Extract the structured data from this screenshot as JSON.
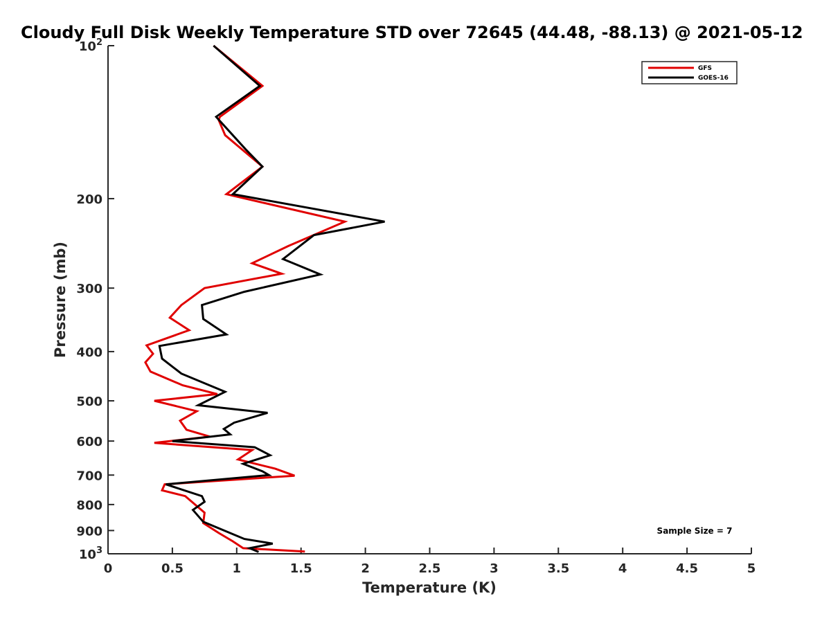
{
  "chart_data": {
    "type": "line",
    "title": "Cloudy Full Disk Weekly Temperature STD over 72645 (44.48, -88.13) @ 2021-05-12",
    "xlabel": "Temperature (K)",
    "ylabel": "Pressure (mb)",
    "xlim": [
      0,
      5
    ],
    "ylim": [
      100,
      1000
    ],
    "y_scale": "log",
    "y_reversed": true,
    "grid": false,
    "legend_position": "top-right",
    "x_ticks": [
      "0",
      "0.5",
      "1",
      "1.5",
      "2",
      "2.5",
      "3",
      "3.5",
      "4",
      "4.5",
      "5"
    ],
    "x_tick_values": [
      0,
      0.5,
      1,
      1.5,
      2,
      2.5,
      3,
      3.5,
      4,
      4.5,
      5
    ],
    "y_tick_values": [
      100,
      200,
      300,
      400,
      500,
      600,
      700,
      800,
      900,
      1000
    ],
    "y_tick_labels": [
      {
        "base": "10",
        "exp": "2"
      },
      {
        "base": "200",
        "exp": ""
      },
      {
        "base": "300",
        "exp": ""
      },
      {
        "base": "400",
        "exp": ""
      },
      {
        "base": "500",
        "exp": ""
      },
      {
        "base": "600",
        "exp": ""
      },
      {
        "base": "700",
        "exp": ""
      },
      {
        "base": "800",
        "exp": ""
      },
      {
        "base": "900",
        "exp": ""
      },
      {
        "base": "10",
        "exp": "3"
      }
    ],
    "annotation": "Sample Size = 7",
    "series": [
      {
        "name": "GFS",
        "color": "#e00000",
        "points": [
          [
            0.82,
            100
          ],
          [
            1.2,
            120
          ],
          [
            0.87,
            138
          ],
          [
            0.86,
            140
          ],
          [
            0.91,
            150
          ],
          [
            1.2,
            173
          ],
          [
            0.92,
            196
          ],
          [
            1.84,
            222
          ],
          [
            1.4,
            248
          ],
          [
            1.12,
            268
          ],
          [
            1.35,
            281
          ],
          [
            0.75,
            300
          ],
          [
            0.57,
            324
          ],
          [
            0.48,
            343
          ],
          [
            0.63,
            363
          ],
          [
            0.3,
            389
          ],
          [
            0.35,
            404
          ],
          [
            0.29,
            420
          ],
          [
            0.33,
            438
          ],
          [
            0.58,
            466
          ],
          [
            0.85,
            485
          ],
          [
            0.36,
            500
          ],
          [
            0.69,
            524
          ],
          [
            0.56,
            547
          ],
          [
            0.61,
            570
          ],
          [
            0.79,
            588
          ],
          [
            0.36,
            605
          ],
          [
            1.12,
            625
          ],
          [
            1.01,
            652
          ],
          [
            1.3,
            680
          ],
          [
            1.45,
            702
          ],
          [
            0.44,
            730
          ],
          [
            0.42,
            750
          ],
          [
            0.6,
            770
          ],
          [
            0.75,
            830
          ],
          [
            0.74,
            870
          ],
          [
            0.86,
            910
          ],
          [
            0.97,
            945
          ],
          [
            1.05,
            975
          ],
          [
            1.53,
            990
          ]
        ]
      },
      {
        "name": "GOES-16",
        "color": "#000000",
        "points": [
          [
            0.82,
            100
          ],
          [
            1.18,
            120
          ],
          [
            0.84,
            138
          ],
          [
            1.07,
            160
          ],
          [
            1.2,
            173
          ],
          [
            0.97,
            196
          ],
          [
            2.15,
            222
          ],
          [
            1.6,
            236
          ],
          [
            1.36,
            263
          ],
          [
            1.65,
            282
          ],
          [
            1.06,
            305
          ],
          [
            0.73,
            324
          ],
          [
            0.74,
            345
          ],
          [
            0.92,
            370
          ],
          [
            0.4,
            390
          ],
          [
            0.42,
            413
          ],
          [
            0.57,
            442
          ],
          [
            0.91,
            480
          ],
          [
            0.7,
            510
          ],
          [
            1.24,
            528
          ],
          [
            0.98,
            552
          ],
          [
            0.9,
            568
          ],
          [
            0.95,
            582
          ],
          [
            0.5,
            600
          ],
          [
            1.14,
            617
          ],
          [
            1.26,
            640
          ],
          [
            1.05,
            665
          ],
          [
            1.2,
            688
          ],
          [
            1.25,
            700
          ],
          [
            0.45,
            730
          ],
          [
            0.73,
            770
          ],
          [
            0.75,
            790
          ],
          [
            0.66,
            820
          ],
          [
            0.74,
            865
          ],
          [
            1.06,
            935
          ],
          [
            1.28,
            955
          ],
          [
            1.1,
            975
          ],
          [
            1.17,
            992
          ]
        ]
      }
    ]
  }
}
